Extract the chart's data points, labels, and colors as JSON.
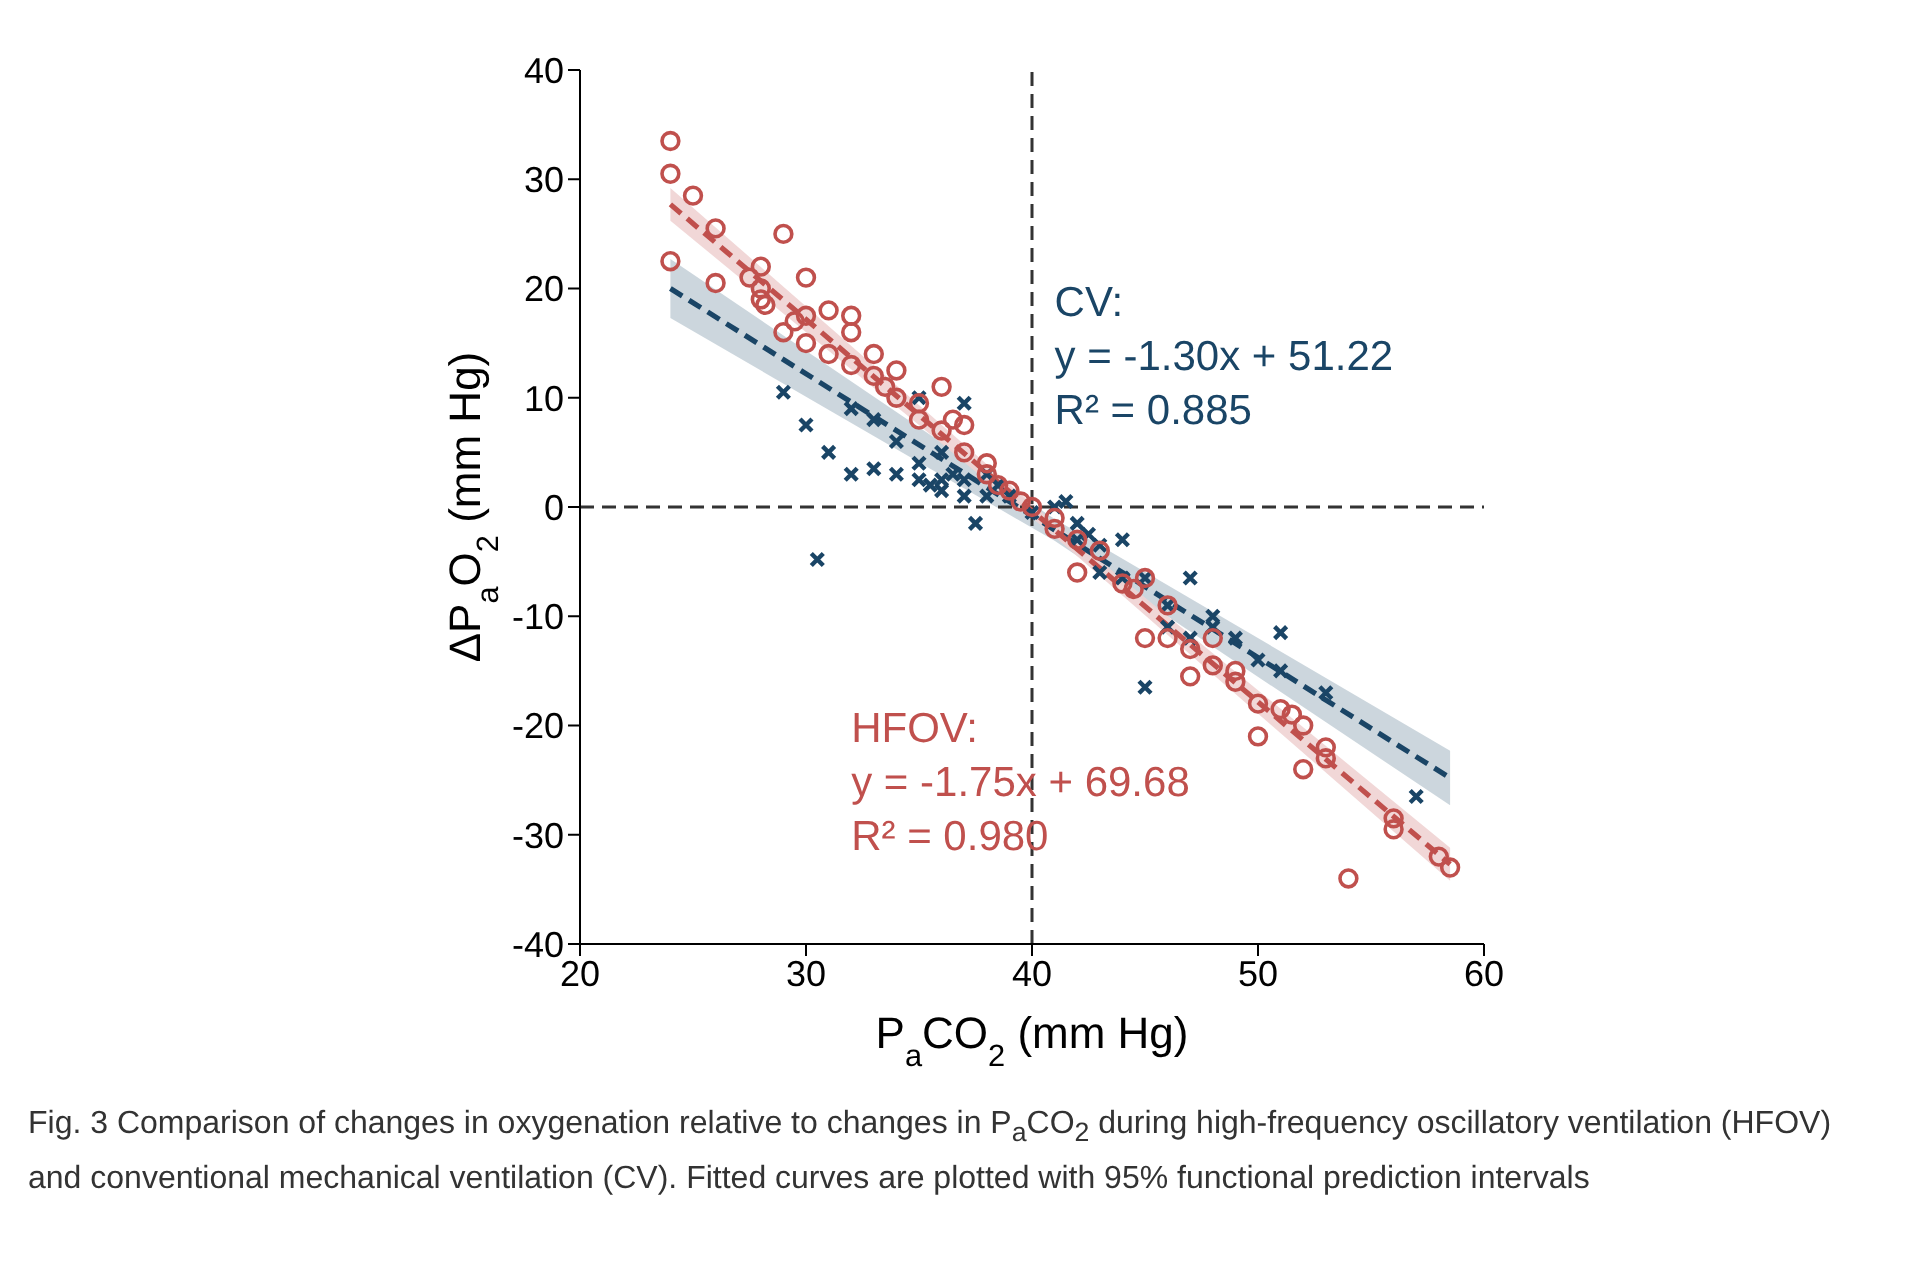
{
  "chart_data": {
    "type": "scatter",
    "xlabel": "P$_{a}$CO$_{2}$ (mm Hg)",
    "ylabel": "ΔP$_{a}$O$_{2}$ (mm Hg)",
    "xlim": [
      20,
      60
    ],
    "ylim": [
      -40,
      40
    ],
    "xticks": [
      20,
      30,
      40,
      50,
      60
    ],
    "yticks": [
      -40,
      -30,
      -20,
      -10,
      0,
      10,
      20,
      30,
      40
    ],
    "grid": false,
    "legend": false,
    "ref_lines": [
      {
        "axis": "x",
        "value": 40,
        "color": "#333333",
        "line_style": "dashed"
      },
      {
        "axis": "y",
        "value": 0,
        "color": "#333333",
        "line_style": "dashed"
      }
    ],
    "series": [
      {
        "type": "line",
        "color": "#1a4566",
        "line_style": "dashed",
        "x": [
          24,
          41,
          58.5
        ],
        "values": [
          20.0,
          -2.1,
          -24.8
        ],
        "lower": [
          17.3,
          -3.1,
          -27.3
        ],
        "upper": [
          22.7,
          -1.1,
          -22.3
        ]
      },
      {
        "type": "line",
        "color": "#c0504d",
        "line_style": "dashed",
        "x": [
          24,
          41,
          58.5
        ],
        "values": [
          27.7,
          -2.1,
          -32.7
        ],
        "lower": [
          26.2,
          -2.7,
          -34.2
        ],
        "upper": [
          29.2,
          -1.5,
          -31.2
        ]
      },
      {
        "color": "#1a4566",
        "marker": "cross",
        "x": [
          29,
          30,
          30.5,
          31,
          32,
          32,
          33,
          33,
          34,
          34,
          35,
          35,
          35,
          35.5,
          36,
          36,
          36,
          36.5,
          37,
          37,
          37.5,
          37,
          38,
          38,
          38.5,
          39,
          40,
          41,
          41.5,
          42,
          42,
          42.5,
          43,
          43,
          44,
          44,
          45,
          45,
          46,
          46,
          47,
          47,
          48,
          48,
          49,
          50,
          51,
          51,
          53,
          57
        ],
        "values": [
          10.5,
          7.5,
          -4.8,
          5,
          3,
          9,
          8,
          3.5,
          6,
          3,
          2.5,
          4,
          10,
          2,
          1.5,
          5,
          2.5,
          3,
          1,
          2.5,
          -1.5,
          9.5,
          1,
          3,
          2,
          1,
          -0.5,
          0,
          0.5,
          -1.5,
          -3,
          -2.5,
          -3.5,
          -6,
          -3,
          -6.5,
          -6.5,
          -16.5,
          -9,
          -11,
          -6.5,
          -12,
          -10,
          -11,
          -12,
          -14,
          -11.5,
          -15,
          -17,
          -26.5
        ]
      },
      {
        "color": "#c0504d",
        "marker": "circle",
        "x": [
          24,
          24,
          24,
          25,
          26,
          26,
          27.5,
          28,
          28,
          28.2,
          28,
          29,
          29,
          29.5,
          30,
          30,
          30,
          31,
          31,
          32,
          32,
          32,
          33,
          33,
          33.5,
          34,
          34,
          35,
          35,
          36,
          36,
          36.5,
          37,
          37,
          38,
          38,
          38.5,
          39,
          39.5,
          40,
          41,
          41,
          42,
          42,
          43,
          44,
          44.5,
          45,
          45,
          46,
          46,
          47,
          47,
          48,
          48,
          49,
          49,
          50,
          50,
          51,
          51.5,
          52,
          52,
          53,
          53,
          54,
          56,
          56,
          58,
          58.5
        ],
        "values": [
          33.5,
          30.5,
          22.5,
          28.5,
          25.5,
          20.5,
          21,
          22,
          19,
          18.5,
          20,
          25,
          16,
          17,
          21,
          17.5,
          15,
          18,
          14,
          17.5,
          16,
          13,
          14,
          12,
          11,
          12.5,
          10,
          9.5,
          8,
          11,
          7,
          8,
          7.5,
          5,
          4,
          3,
          2,
          1.5,
          0.5,
          0,
          -1,
          -2,
          -3,
          -6,
          -4,
          -7,
          -7.5,
          -6.5,
          -12,
          -9,
          -12,
          -13,
          -15.5,
          -12,
          -14.5,
          -15,
          -16,
          -18,
          -21,
          -18.5,
          -19,
          -24,
          -20,
          -22,
          -23,
          -34,
          -28.5,
          -29.5,
          -32,
          -33
        ]
      }
    ],
    "annotations": [
      "CV:\ny = -1.30x + 51.22\nR² = 0.885",
      "HFOV:\ny = -1.75x + 69.68\nR² = 0.980",
      "$^{}$Fig. 3 Comparison of changes in oxygenation relative to changes in P$_{a}$CO$_{2}$ during high-frequency oscillatory ventilation (HFOV) and conventional mechanical ventilation (CV). Fitted curves are plotted with 95% functional prediction intervals"
    ]
  }
}
